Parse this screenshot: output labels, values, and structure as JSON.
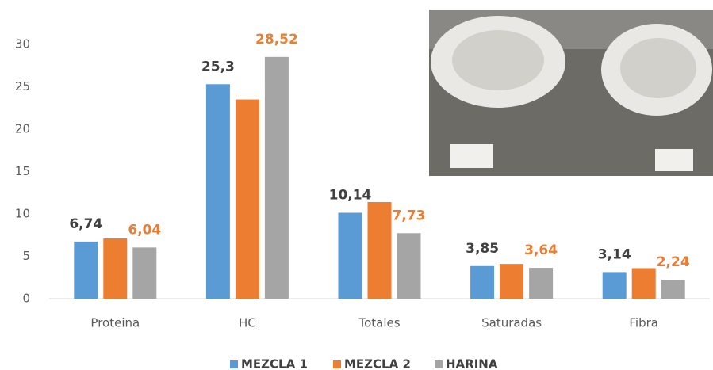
{
  "chart_data": {
    "type": "bar",
    "categories": [
      "Proteina",
      "HC",
      "Totales",
      "Saturadas",
      "Fibra"
    ],
    "series": [
      {
        "name": "MEZCLA 1",
        "color": "#5b9bd5",
        "values": [
          6.74,
          25.3,
          10.14,
          3.85,
          3.14
        ],
        "value_labels": [
          "6,74",
          "25,3",
          "10,14",
          "3,85",
          "3,14"
        ],
        "label_color": "#404040"
      },
      {
        "name": "MEZCLA 2",
        "color": "#ed7d31",
        "values": [
          7.1,
          23.5,
          11.4,
          4.1,
          3.6
        ]
      },
      {
        "name": "HARINA",
        "color": "#a5a5a5",
        "values": [
          6.04,
          28.52,
          7.73,
          3.64,
          2.24
        ],
        "value_labels": [
          "6,04",
          "28,52",
          "7,73",
          "3,64",
          "2,24"
        ],
        "label_color": "#ed7d31"
      }
    ],
    "ylim": [
      0,
      30
    ],
    "yticks": [
      0,
      5,
      10,
      15,
      20,
      25,
      30
    ],
    "grid": false
  }
}
